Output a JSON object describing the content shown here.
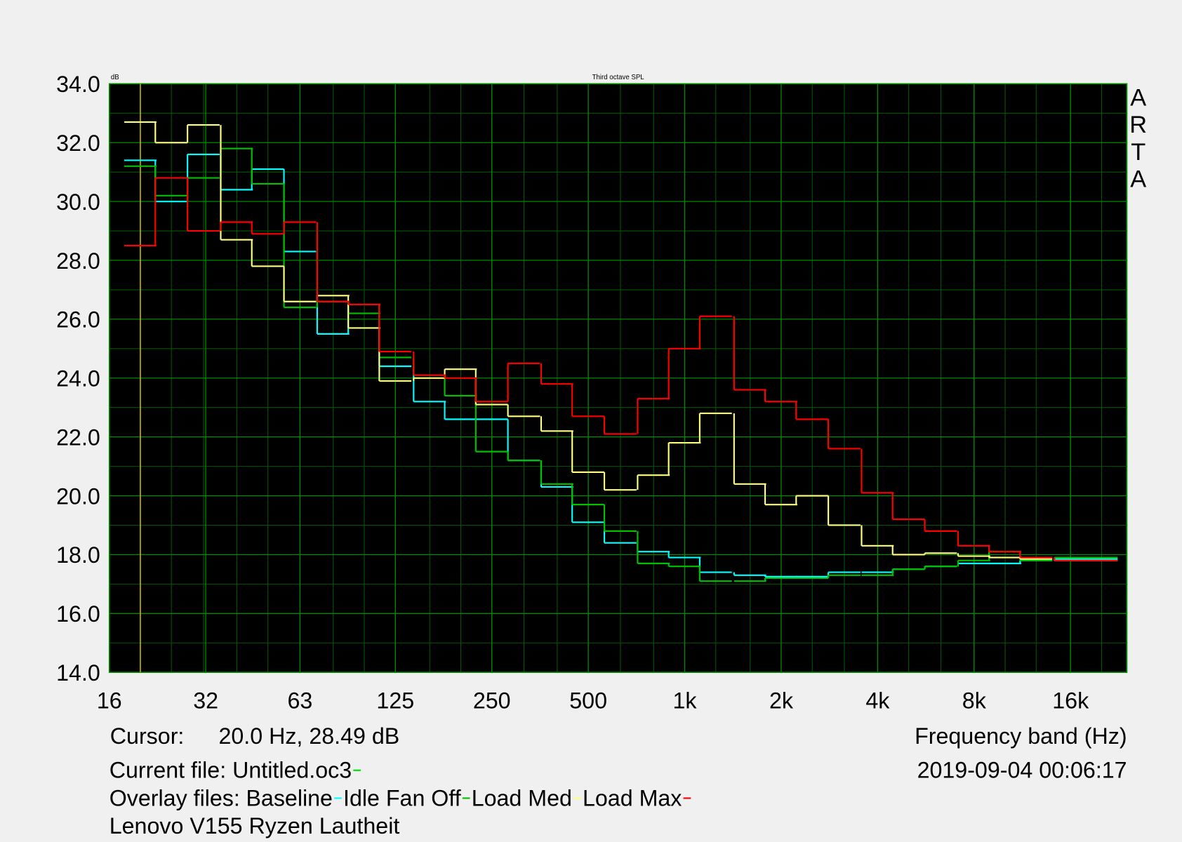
{
  "chart_data": {
    "type": "step",
    "title": "Third octave SPL",
    "y_unit": "dB",
    "watermark": "ARTA",
    "x_label": "Frequency band (Hz)",
    "timestamp": "2019-09-04  00:06:17",
    "cursor": {
      "label": "Cursor:",
      "readout": "20.0 Hz, 28.49 dB",
      "x": 20,
      "color": "#c8b400"
    },
    "current_file": {
      "label": "Current file: Untitled.oc3",
      "color": "#00e000"
    },
    "overlay_label": "Overlay files:",
    "caption": "Lenovo V155 Ryzen Lautheit",
    "log_x": true,
    "grid": true,
    "x": [
      20,
      25,
      31.5,
      40,
      50,
      63,
      80,
      100,
      125,
      160,
      200,
      250,
      315,
      400,
      500,
      630,
      800,
      1000,
      1250,
      1600,
      2000,
      2500,
      3150,
      4000,
      5000,
      6300,
      8000,
      10000,
      12500,
      16000,
      20000
    ],
    "xlim": [
      16,
      24000
    ],
    "xticks": [
      16,
      32,
      63,
      125,
      250,
      500,
      {
        "value": 1000,
        "label": "1k"
      },
      {
        "value": 2000,
        "label": "2k"
      },
      {
        "value": 4000,
        "label": "4k"
      },
      {
        "value": 8000,
        "label": "8k"
      },
      {
        "value": 16000,
        "label": "16k"
      }
    ],
    "ylim": [
      14,
      34
    ],
    "yticks": [
      {
        "value": 14,
        "label": "14.0"
      },
      {
        "value": 16,
        "label": "16.0"
      },
      {
        "value": 18,
        "label": "18.0"
      },
      {
        "value": 20,
        "label": "20.0"
      },
      {
        "value": 22,
        "label": "22.0"
      },
      {
        "value": 24,
        "label": "24.0"
      },
      {
        "value": 26,
        "label": "26.0"
      },
      {
        "value": 28,
        "label": "28.0"
      },
      {
        "value": 30,
        "label": "30.0"
      },
      {
        "value": 32,
        "label": "32.0"
      },
      {
        "value": 34,
        "label": "34.0"
      }
    ],
    "series": [
      {
        "name": "Baseline",
        "color": "#00ffff",
        "values": [
          31.4,
          30.0,
          31.6,
          30.4,
          31.1,
          28.3,
          25.5,
          26.5,
          24.4,
          23.2,
          22.6,
          22.6,
          21.2,
          20.3,
          19.1,
          18.4,
          18.1,
          17.9,
          17.4,
          17.3,
          17.25,
          17.25,
          17.4,
          17.4,
          17.5,
          17.6,
          17.7,
          17.7,
          17.8,
          17.85,
          17.85
        ]
      },
      {
        "name": "Idle Fan Off",
        "color": "#00c000",
        "values": [
          31.2,
          30.2,
          30.8,
          31.8,
          30.6,
          26.4,
          26.6,
          26.2,
          24.7,
          24.1,
          23.4,
          21.5,
          21.2,
          20.4,
          19.7,
          18.8,
          17.7,
          17.6,
          17.1,
          17.1,
          17.2,
          17.2,
          17.3,
          17.3,
          17.5,
          17.6,
          17.8,
          18.1,
          17.8,
          17.9,
          17.9
        ]
      },
      {
        "name": "Load Med",
        "color": "#ffff80",
        "values": [
          32.7,
          32.0,
          32.6,
          28.7,
          27.8,
          26.6,
          26.8,
          25.7,
          23.9,
          24.0,
          24.3,
          23.1,
          22.7,
          22.2,
          20.8,
          20.2,
          20.7,
          21.8,
          22.8,
          20.4,
          19.7,
          20.0,
          19.0,
          18.3,
          18.0,
          18.05,
          17.95,
          17.9,
          17.85,
          17.8,
          17.8
        ]
      },
      {
        "name": "Load Max",
        "color": "#ff0000",
        "values": [
          28.5,
          30.8,
          29.0,
          29.3,
          28.9,
          29.3,
          26.6,
          26.5,
          24.9,
          24.1,
          24.0,
          23.2,
          24.5,
          23.8,
          22.7,
          22.1,
          23.3,
          25.0,
          26.1,
          23.6,
          23.2,
          22.6,
          21.6,
          20.1,
          19.2,
          18.8,
          18.3,
          18.1,
          17.9,
          17.8,
          17.8
        ]
      }
    ]
  }
}
